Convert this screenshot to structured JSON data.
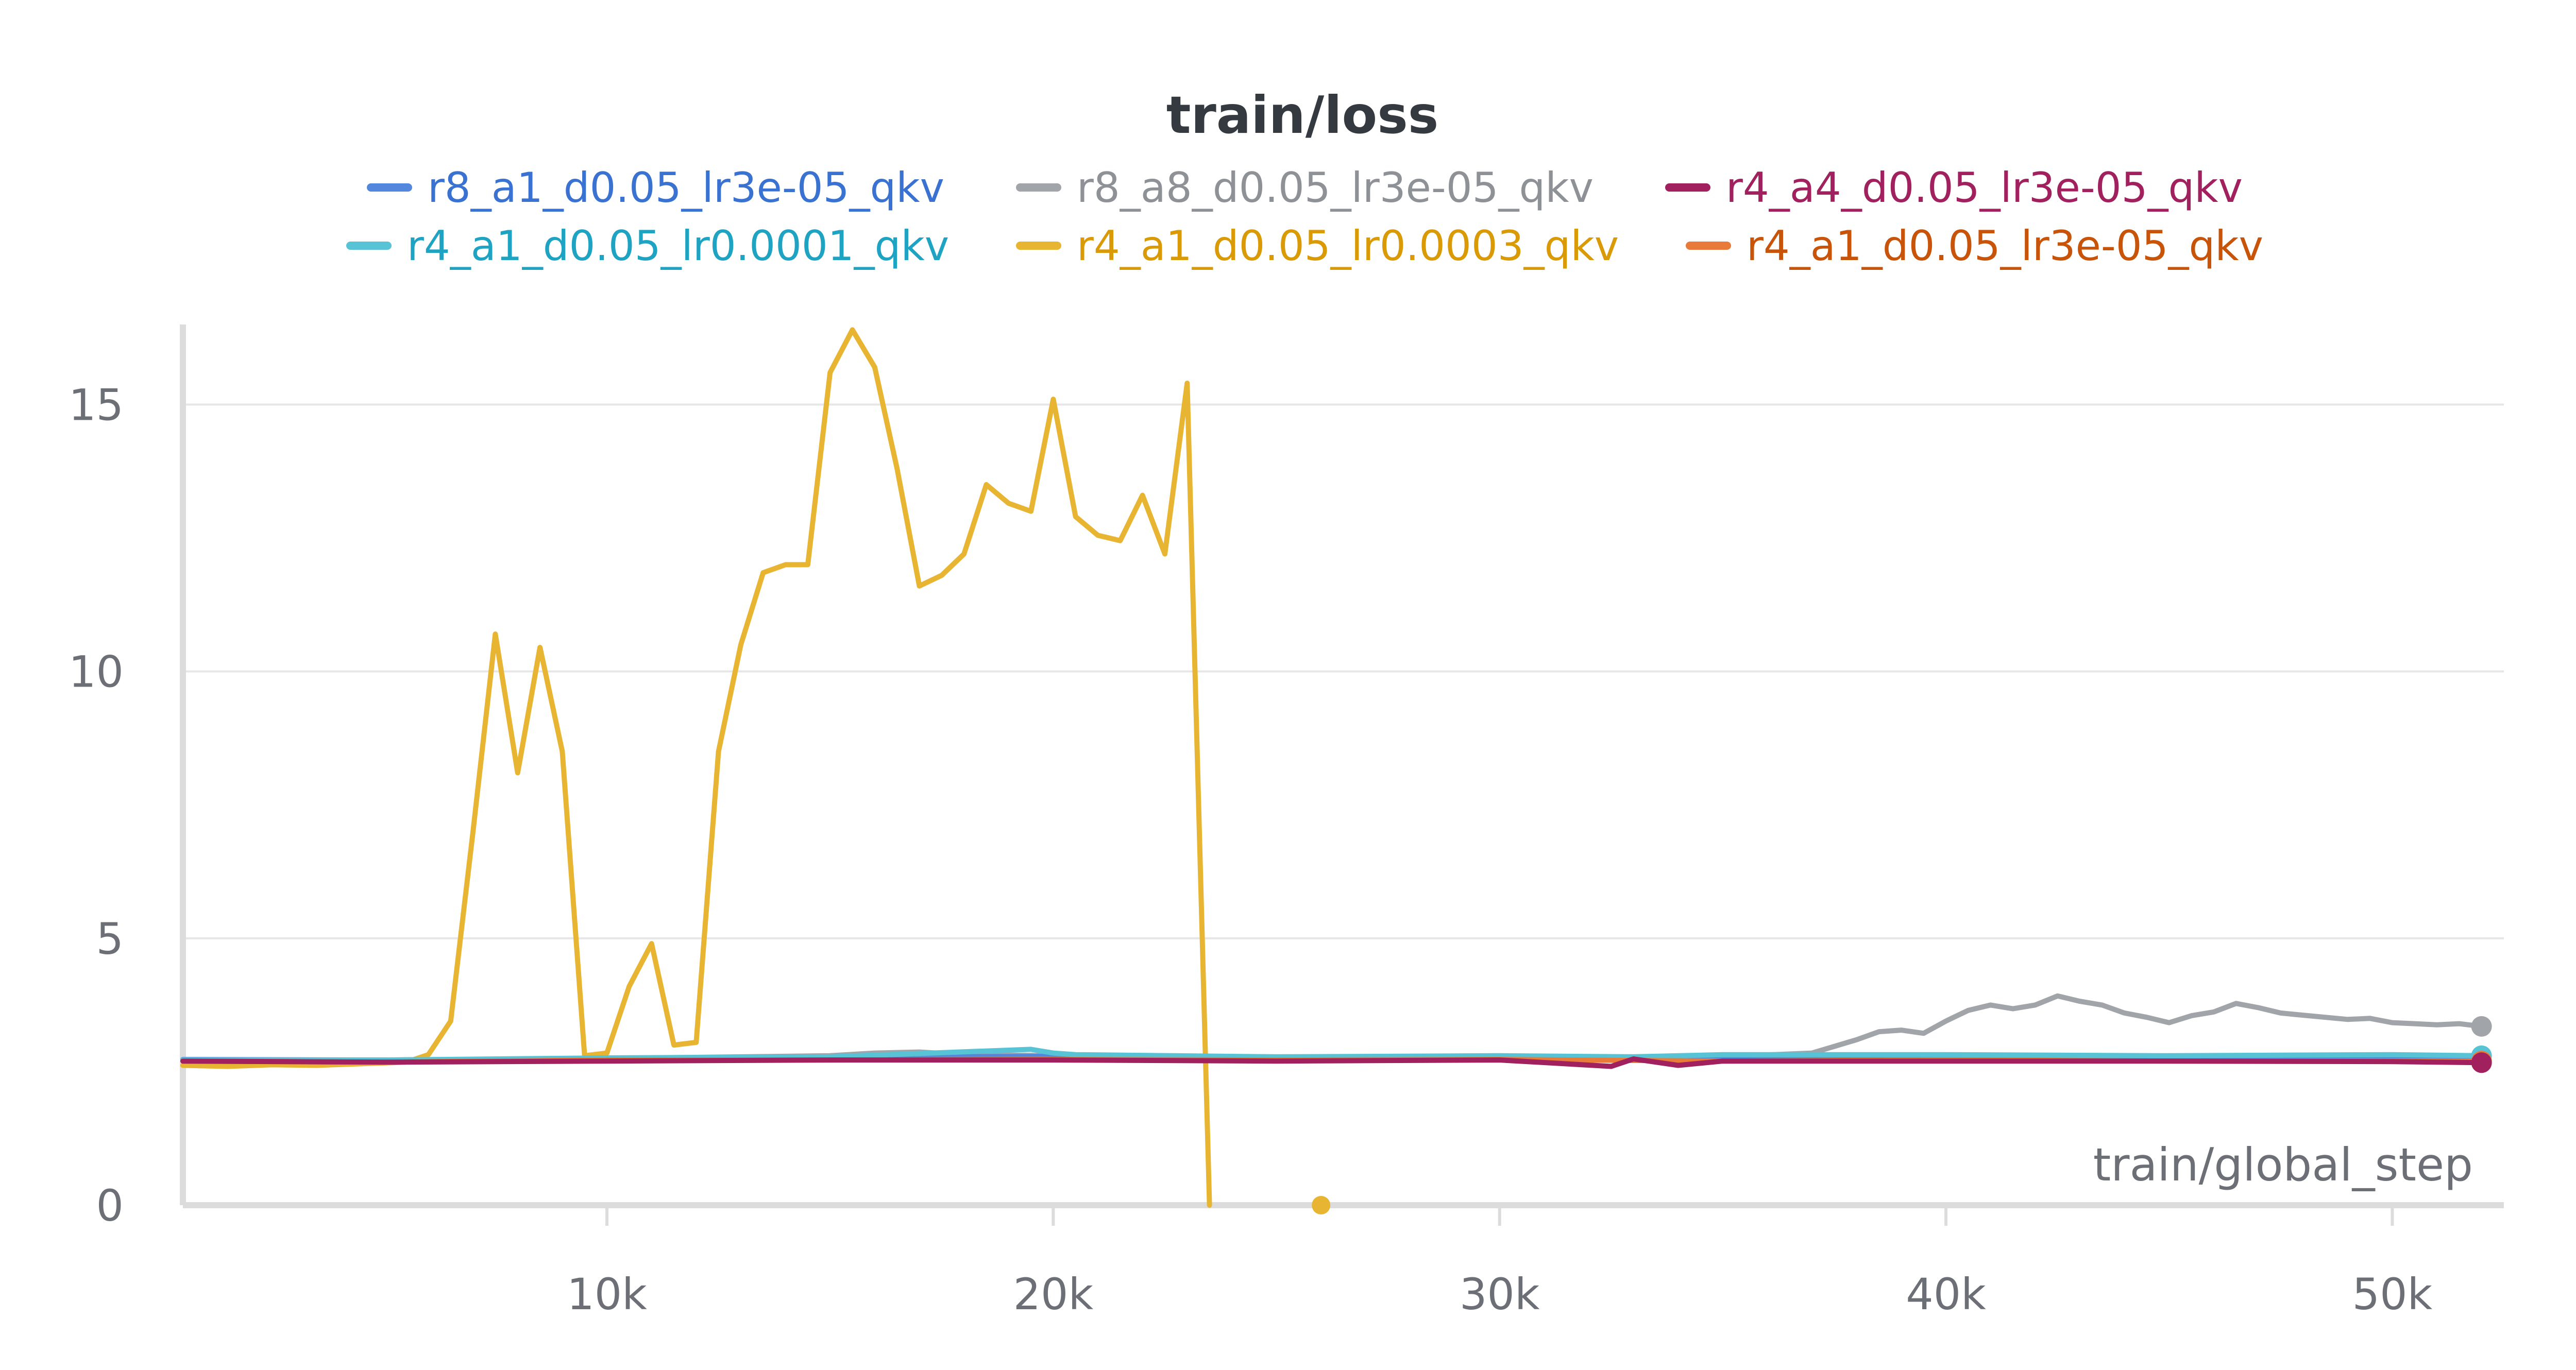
{
  "chart_data": {
    "type": "line",
    "title": "train/loss",
    "xlabel": "train/global_step",
    "ylabel": "",
    "xlim": [
      500,
      52500
    ],
    "ylim": [
      0,
      16.5
    ],
    "x_ticks": [
      10000,
      20000,
      30000,
      40000,
      50000
    ],
    "x_tick_labels": [
      "10k",
      "20k",
      "30k",
      "40k",
      "50k"
    ],
    "y_ticks": [
      0,
      5,
      10,
      15
    ],
    "y_tick_labels": [
      "0",
      "5",
      "10",
      "15"
    ],
    "grid": true,
    "legend_position": "top-center",
    "series": [
      {
        "name": "r8_a1_d0.05_lr3e-05_qkv",
        "color": "#5387DD",
        "text_color": "#3A72D1",
        "x": [
          500,
          5000,
          10000,
          15000,
          20000,
          25000,
          30000,
          35000,
          40000,
          45000,
          52000
        ],
        "y": [
          2.73,
          2.72,
          2.74,
          2.77,
          2.79,
          2.75,
          2.76,
          2.74,
          2.76,
          2.75,
          2.76
        ],
        "end_marker": false
      },
      {
        "name": "r8_a8_d0.05_lr3e-05_qkv",
        "color": "#A1A4A9",
        "text_color": "#8E9196",
        "x": [
          500,
          5000,
          10000,
          15000,
          16000,
          17000,
          18000,
          20000,
          22000,
          25000,
          30000,
          33000,
          35000,
          37000,
          38000,
          38500,
          39000,
          39500,
          40000,
          40500,
          41000,
          41500,
          42000,
          42500,
          43000,
          43500,
          44000,
          44500,
          45000,
          45500,
          46000,
          46500,
          47000,
          47500,
          48000,
          48500,
          49000,
          49500,
          50000,
          50500,
          51000,
          51500,
          52000
        ],
        "y": [
          2.72,
          2.72,
          2.75,
          2.8,
          2.85,
          2.87,
          2.82,
          2.8,
          2.78,
          2.77,
          2.78,
          2.76,
          2.78,
          2.85,
          3.1,
          3.25,
          3.28,
          3.22,
          3.45,
          3.65,
          3.75,
          3.68,
          3.75,
          3.92,
          3.82,
          3.75,
          3.6,
          3.52,
          3.42,
          3.55,
          3.62,
          3.78,
          3.7,
          3.6,
          3.56,
          3.52,
          3.48,
          3.5,
          3.42,
          3.4,
          3.38,
          3.4,
          3.35
        ],
        "end_marker": true
      },
      {
        "name": "r4_a4_d0.05_lr3e-05_qkv",
        "color": "#A0215E",
        "text_color": "#A0215E",
        "x": [
          500,
          5000,
          10000,
          15000,
          20000,
          25000,
          30000,
          32500,
          33000,
          34000,
          35000,
          40000,
          45000,
          50000,
          52000
        ],
        "y": [
          2.7,
          2.68,
          2.7,
          2.72,
          2.72,
          2.7,
          2.72,
          2.6,
          2.74,
          2.62,
          2.7,
          2.7,
          2.7,
          2.69,
          2.67
        ],
        "end_marker": true
      },
      {
        "name": "r4_a1_d0.05_lr0.0001_qkv",
        "color": "#58C3D5",
        "text_color": "#1FA3C2",
        "x": [
          500,
          5000,
          10000,
          15000,
          19500,
          20000,
          20500,
          25000,
          30000,
          33000,
          35000,
          40000,
          45000,
          50000,
          52000
        ],
        "y": [
          2.72,
          2.72,
          2.76,
          2.78,
          2.92,
          2.85,
          2.82,
          2.78,
          2.8,
          2.78,
          2.82,
          2.82,
          2.8,
          2.82,
          2.8
        ],
        "end_marker": true
      },
      {
        "name": "r4_a1_d0.05_lr0.0003_qkv",
        "color": "#E8B533",
        "text_color": "#D99A06",
        "x": [
          500,
          1500,
          2500,
          3500,
          4500,
          5500,
          6000,
          6500,
          7000,
          7500,
          8000,
          8500,
          9000,
          9500,
          10000,
          10500,
          11000,
          11500,
          12000,
          12500,
          13000,
          13500,
          14000,
          14500,
          15000,
          15500,
          16000,
          16500,
          17000,
          17500,
          18000,
          18500,
          19000,
          19500,
          20000,
          20500,
          21000,
          21500,
          22000,
          22500,
          23000,
          23500
        ],
        "y": [
          2.62,
          2.6,
          2.63,
          2.62,
          2.65,
          2.68,
          2.82,
          3.45,
          7.0,
          10.7,
          8.1,
          10.45,
          8.5,
          2.8,
          2.85,
          4.1,
          4.9,
          3.0,
          3.05,
          8.5,
          10.5,
          11.85,
          12.0,
          12.0,
          15.6,
          16.4,
          15.7,
          13.8,
          11.6,
          11.8,
          12.2,
          13.5,
          13.15,
          13.0,
          15.1,
          12.9,
          12.55,
          12.45,
          13.3,
          12.2,
          15.4,
          0.0
        ],
        "dot_x": 26000,
        "dot_y": 0.0,
        "end_marker": false
      },
      {
        "name": "r4_a1_d0.05_lr3e-05_qkv",
        "color": "#E87B3A",
        "text_color": "#C8540A",
        "x": [
          500,
          5000,
          10000,
          15000,
          20000,
          25000,
          30000,
          35000,
          40000,
          45000,
          50000,
          52000
        ],
        "y": [
          2.7,
          2.68,
          2.72,
          2.72,
          2.73,
          2.72,
          2.73,
          2.7,
          2.72,
          2.7,
          2.7,
          2.7
        ],
        "end_marker": true
      }
    ]
  }
}
